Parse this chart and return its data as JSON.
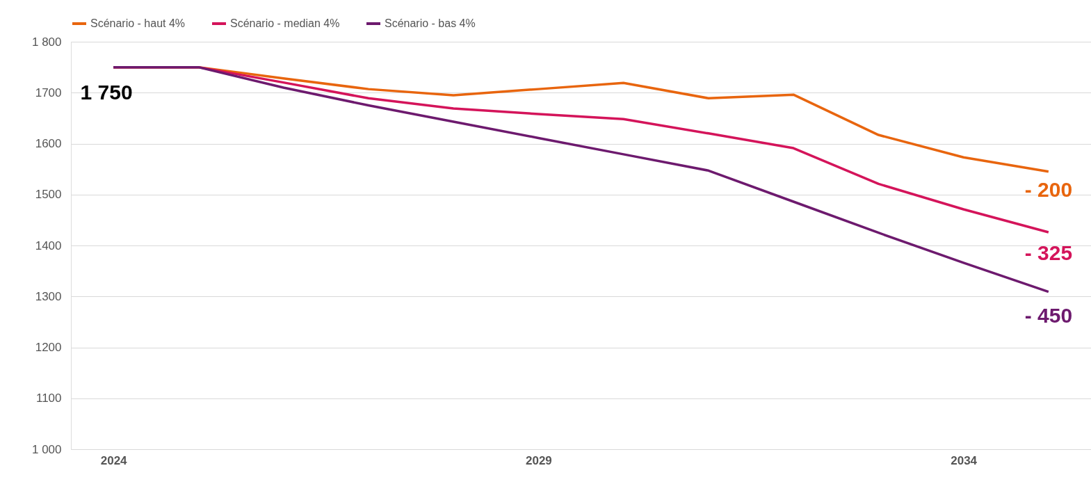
{
  "chart_data": {
    "type": "line",
    "categories": [
      "2024",
      null,
      null,
      null,
      null,
      "2029",
      null,
      null,
      null,
      null,
      "2034",
      null
    ],
    "series": [
      {
        "name": "Scénario - haut 4%",
        "color": "#e8650e",
        "values": [
          1750,
          1750,
          1728,
          1707,
          1695,
          1707,
          1719,
          1689,
          1696,
          1617,
          1573,
          1545
        ]
      },
      {
        "name": "Scénario - median 4%",
        "color": "#d4145a",
        "values": [
          1750,
          1750,
          1720,
          1689,
          1669,
          1658,
          1648,
          1620,
          1591,
          1521,
          1471,
          1426
        ]
      },
      {
        "name": "Scénario - bas 4%",
        "color": "#6d1a6e",
        "values": [
          1750,
          1750,
          1710,
          1675,
          1643,
          1611,
          1579,
          1547,
          1486,
          1425,
          1366,
          1309
        ]
      }
    ],
    "ylim": [
      1000,
      1800
    ],
    "yticks": [
      {
        "value": 1000,
        "label": "1 000"
      },
      1100,
      1200,
      1300,
      1400,
      1500,
      1600,
      1700,
      {
        "value": 1800,
        "label": "1 800"
      }
    ],
    "annotations": [
      "1 750",
      "- 200",
      "- 325",
      "- 450"
    ],
    "grid": "y",
    "legend": "top",
    "marker": "none",
    "line_style": "solid"
  }
}
